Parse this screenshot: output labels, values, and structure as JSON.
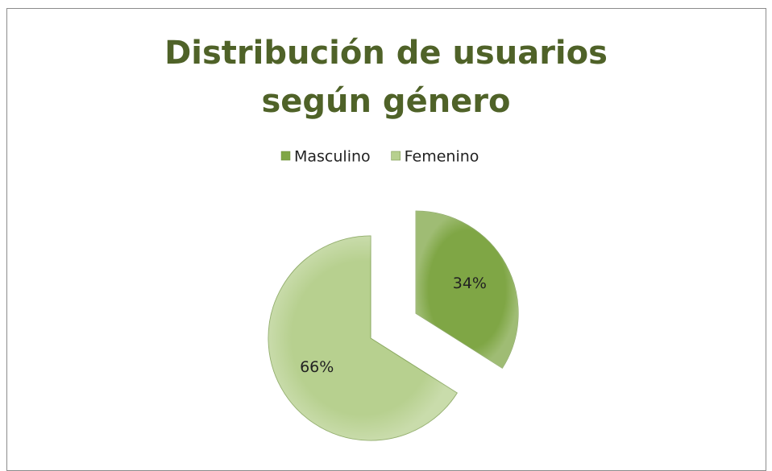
{
  "chart_data": {
    "type": "pie",
    "title": "Distribución de usuarios según género",
    "categories": [
      "Masculino",
      "Femenino"
    ],
    "values": [
      34,
      66
    ],
    "value_labels": [
      "34%",
      "66%"
    ],
    "colors": [
      "#7fa645",
      "#b7d08f"
    ],
    "legend": "top"
  }
}
